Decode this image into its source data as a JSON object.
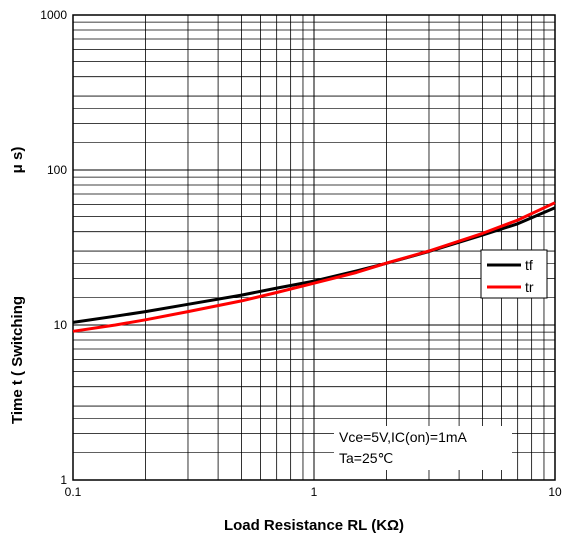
{
  "chart_data": {
    "type": "line",
    "xscale": "log",
    "yscale": "log",
    "xlim": [
      0.1,
      10
    ],
    "ylim": [
      1,
      1000
    ],
    "xlabel": "Load Resistance RL (KΩ)",
    "ylabel_left": "Time t (  Switching",
    "ylabel_right": "μ s)",
    "x_ticks": [
      {
        "value": 0.1,
        "label": "0.1"
      },
      {
        "value": 1,
        "label": "1"
      },
      {
        "value": 10,
        "label": "10"
      }
    ],
    "y_ticks": [
      {
        "value": 1,
        "label": "1"
      },
      {
        "value": 10,
        "label": "10"
      },
      {
        "value": 100,
        "label": "100"
      },
      {
        "value": 1000,
        "label": "1000"
      }
    ],
    "grid": true,
    "legend": "right",
    "series": [
      {
        "name": "tf",
        "color": "#000000",
        "x": [
          0.1,
          0.15,
          0.2,
          0.3,
          0.5,
          0.7,
          1.0,
          1.5,
          2.0,
          3.0,
          5.0,
          7.0,
          10.0
        ],
        "y": [
          10.4,
          11.4,
          12.2,
          13.6,
          15.6,
          17.3,
          19.2,
          22.3,
          25.0,
          29.8,
          38.0,
          45.0,
          57.0
        ]
      },
      {
        "name": "tr",
        "color": "#ff0000",
        "x": [
          0.1,
          0.15,
          0.2,
          0.3,
          0.5,
          0.7,
          1.0,
          1.5,
          2.0,
          3.0,
          5.0,
          7.0,
          10.0
        ],
        "y": [
          9.1,
          10.0,
          10.8,
          12.2,
          14.3,
          16.2,
          18.6,
          21.8,
          25.1,
          30.0,
          39.0,
          47.5,
          61.5
        ]
      }
    ],
    "annotations": [
      "Vce=5V,IC(on)=1mA",
      "Ta=25℃"
    ]
  }
}
